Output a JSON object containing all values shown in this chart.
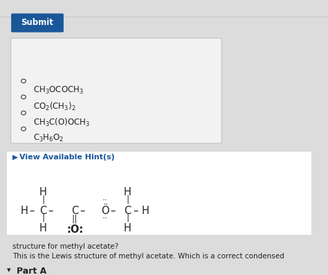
{
  "bg_color": "#dcdcdc",
  "part_a_arrow": "▾",
  "part_a": "Part A",
  "description_line1": "This is the Lewis structure of methyl acetate. Which is a correct condensed",
  "description_line2": "structure for methyl acetate?",
  "hint_arrow": "▶",
  "hint_text": "View Available Hint(s)",
  "hint_color": "#1a5799",
  "box_bg": "#f2f2f2",
  "box_border": "#c0c0c0",
  "submit_bg": "#1a5799",
  "submit_text": "Submit",
  "submit_text_color": "#ffffff",
  "option_texts": [
    "C₃H₆O₂",
    "CH₃C(O)OCH₃",
    "CO₂(CH₃)₂",
    "CH₃OCOCH₃"
  ],
  "option_latex": [
    "$\\mathregular{C_3H_6O_2}$",
    "$\\mathregular{CH_3C(O)OCH_3}$",
    "$\\mathregular{CO_2(CH_3)_2}$",
    "$\\mathregular{CH_3OCOCH_3}$"
  ],
  "text_color": "#222222",
  "circle_color": "#555555"
}
